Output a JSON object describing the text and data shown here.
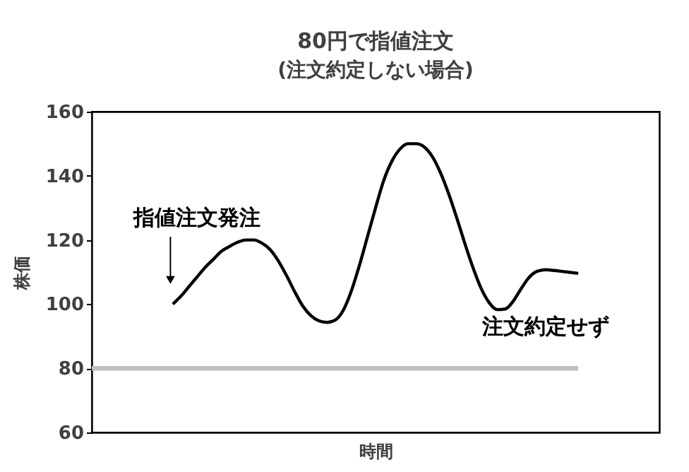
{
  "chart_data": {
    "type": "line",
    "title": "80円で指値注文",
    "subtitle": "(注文約定しない場合)",
    "xlabel": "時間",
    "ylabel": "株価",
    "categories": [
      null,
      null,
      null,
      null,
      null,
      null,
      null,
      null,
      null,
      null,
      null,
      null,
      null,
      null,
      null,
      null,
      null,
      null,
      null,
      null,
      null,
      null,
      null,
      null,
      null,
      null,
      null,
      null,
      null,
      null,
      null,
      null,
      null,
      null,
      null,
      null,
      null,
      null,
      null,
      null,
      null,
      null,
      null,
      null,
      null,
      null,
      null,
      null,
      null,
      null,
      null,
      null,
      null,
      null,
      null,
      null,
      null,
      null,
      null,
      null,
      null,
      null,
      null,
      null,
      null,
      null,
      null,
      null,
      null,
      null,
      null
    ],
    "series": [
      {
        "color": "#000000",
        "values": [
          null,
          null,
          null,
          null,
          null,
          null,
          null,
          null,
          null,
          null,
          100,
          102.5,
          105.5,
          108.5,
          111.5,
          114,
          116.5,
          118,
          119.3,
          120,
          120,
          119,
          117,
          113.5,
          109,
          104,
          99.5,
          96.5,
          94.8,
          94.3,
          95,
          98,
          104,
          112,
          121,
          130,
          138.5,
          144.5,
          148.3,
          150,
          150,
          149,
          146,
          141,
          134.5,
          127,
          119,
          111.5,
          105,
          100.5,
          98.3,
          98.5,
          101,
          105,
          108.5,
          110.3,
          110.7,
          110.5,
          110.2,
          109.9,
          109.6,
          null,
          null,
          null,
          null,
          null,
          null,
          null,
          null,
          null,
          null
        ]
      },
      {
        "color": "#bfbfbf",
        "values": [
          80,
          80,
          80,
          80,
          80,
          80,
          80,
          80,
          80,
          80,
          80,
          80,
          80,
          80,
          80,
          80,
          80,
          80,
          80,
          80,
          80,
          80,
          80,
          80,
          80,
          80,
          80,
          80,
          80,
          80,
          80,
          80,
          80,
          80,
          80,
          80,
          80,
          80,
          80,
          80,
          80,
          80,
          80,
          80,
          80,
          80,
          80,
          80,
          80,
          80,
          80,
          80,
          80,
          80,
          80,
          80,
          80,
          80,
          80,
          80,
          80,
          null,
          null,
          null,
          null,
          null,
          null,
          null,
          null,
          null,
          null
        ]
      }
    ],
    "ylim": [
      60,
      160
    ],
    "yticks": [
      60,
      80,
      100,
      120,
      140,
      160
    ],
    "annotations": [
      "指値注文発注",
      "注文約定せず"
    ]
  }
}
